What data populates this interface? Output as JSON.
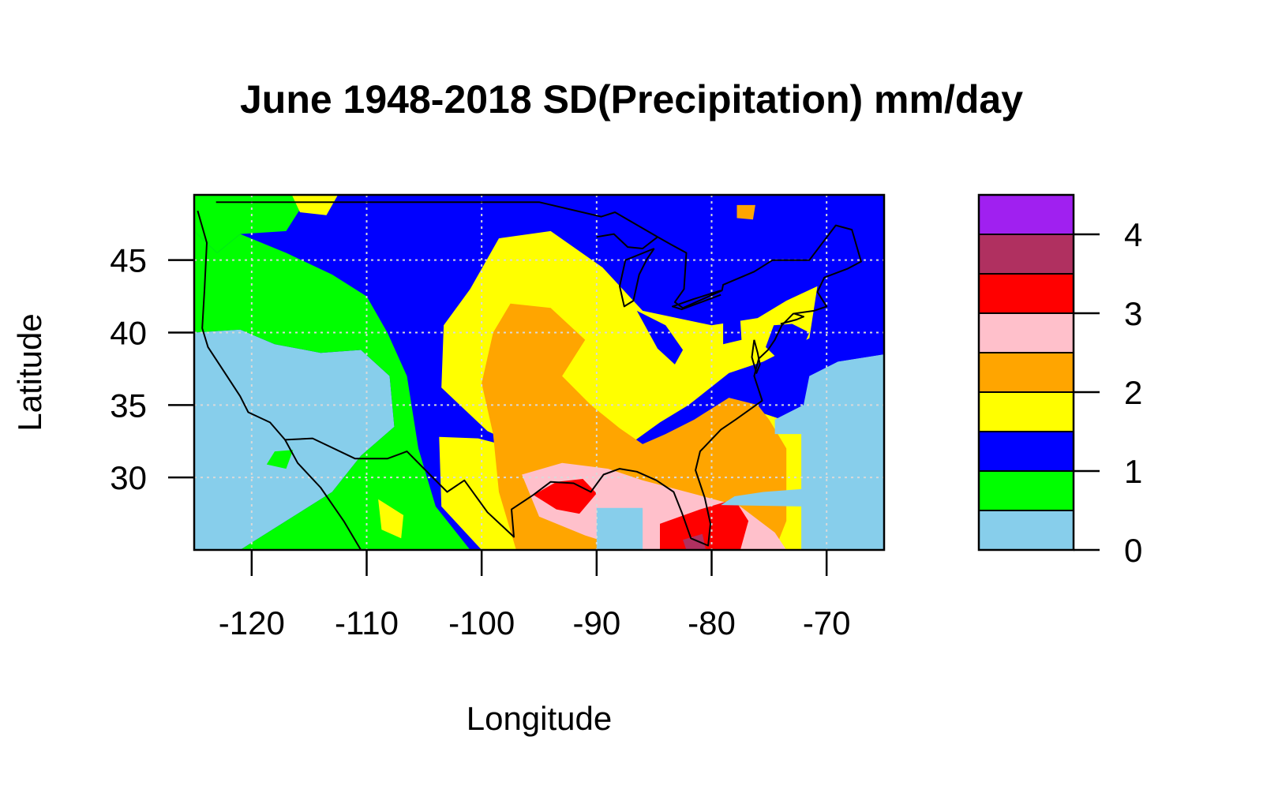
{
  "chart_data": {
    "type": "heatmap",
    "title": "June 1948-2018 SD(Precipitation)  mm/day",
    "xlabel": "Longitude",
    "ylabel": "Latitude",
    "xlim": [
      -125,
      -65
    ],
    "ylim": [
      25,
      49.5
    ],
    "xticks": [
      -120,
      -110,
      -100,
      -90,
      -80,
      -70
    ],
    "yticks": [
      30,
      35,
      40,
      45
    ],
    "grid": true,
    "colorbar": {
      "placement": "right",
      "breaks": [
        0,
        0.5,
        1,
        1.5,
        2,
        2.5,
        3,
        3.5,
        4,
        4.5
      ],
      "colors": [
        "#87CEEB",
        "#00FF00",
        "#0000FF",
        "#FFFF00",
        "#FFA500",
        "#FFC0CB",
        "#FF0000",
        "#B03060",
        "#A020F0",
        "#000000"
      ],
      "ticks": [
        0,
        1,
        2,
        3,
        4
      ]
    },
    "regions": [
      {
        "name": "ocean-west",
        "level": 0,
        "poly": [
          [
            -125,
            25
          ],
          [
            -125,
            40
          ],
          [
            -121,
            40.2
          ],
          [
            -118,
            39.2
          ],
          [
            -114,
            38.6
          ],
          [
            -110.5,
            38.8
          ],
          [
            -108,
            37
          ],
          [
            -107.6,
            33.5
          ],
          [
            -110.5,
            31.5
          ],
          [
            -113,
            29
          ],
          [
            -117,
            27
          ],
          [
            -120,
            25.5
          ],
          [
            -121,
            25
          ]
        ]
      },
      {
        "name": "interior-west",
        "level": 1,
        "poly": [
          [
            -125,
            40
          ],
          [
            -125,
            47
          ],
          [
            -123,
            45.5
          ],
          [
            -121,
            46.8
          ],
          [
            -117,
            45.5
          ],
          [
            -113,
            44
          ],
          [
            -110,
            42.5
          ],
          [
            -108.2,
            40
          ],
          [
            -106.5,
            37
          ],
          [
            -105.5,
            32
          ],
          [
            -104,
            28
          ],
          [
            -101,
            25
          ],
          [
            -121,
            25
          ],
          [
            -120,
            25.5
          ],
          [
            -117,
            27
          ],
          [
            -113,
            29
          ],
          [
            -110.5,
            31.5
          ],
          [
            -107.6,
            33.5
          ],
          [
            -108,
            37
          ],
          [
            -110.5,
            38.8
          ],
          [
            -114,
            38.6
          ],
          [
            -118,
            39.2
          ],
          [
            -121,
            40.2
          ]
        ]
      },
      {
        "name": "northwest-green",
        "level": 1,
        "poly": [
          [
            -125,
            47
          ],
          [
            -125,
            49.5
          ],
          [
            -115,
            49.5
          ],
          [
            -117,
            47
          ],
          [
            -121,
            46.8
          ],
          [
            -123,
            45.5
          ]
        ]
      },
      {
        "name": "yellow-north",
        "level": 3,
        "poly": [
          [
            -98.5,
            46.5
          ],
          [
            -94,
            47
          ],
          [
            -89.5,
            44.5
          ],
          [
            -86,
            41.5
          ],
          [
            -80,
            40.5
          ],
          [
            -76,
            41
          ],
          [
            -73.5,
            42.2
          ],
          [
            -70.8,
            43.2
          ],
          [
            -71.5,
            39.6
          ],
          [
            -75.5,
            38
          ],
          [
            -78.5,
            37.2
          ],
          [
            -82,
            35
          ],
          [
            -84.5,
            33.8
          ],
          [
            -88,
            31.8
          ],
          [
            -94,
            31.2
          ],
          [
            -99.5,
            33.2
          ],
          [
            -103.5,
            36.2
          ],
          [
            -103.3,
            40.5
          ],
          [
            -101,
            43
          ]
        ]
      },
      {
        "name": "yellow-south",
        "level": 3,
        "poly": [
          [
            -100,
            25
          ],
          [
            -103.5,
            28
          ],
          [
            -103.7,
            32.8
          ],
          [
            -100.3,
            32.7
          ],
          [
            -96,
            31.8
          ],
          [
            -90,
            31.8
          ],
          [
            -84.5,
            31.5
          ],
          [
            -80.5,
            32.5
          ],
          [
            -78.5,
            33.3
          ],
          [
            -75.8,
            34.5
          ],
          [
            -72,
            33.5
          ],
          [
            -71.5,
            26.5
          ],
          [
            -71,
            25
          ]
        ]
      },
      {
        "name": "orange-central",
        "level": 4,
        "poly": [
          [
            -97.5,
            42
          ],
          [
            -94,
            41.7
          ],
          [
            -91,
            39.5
          ],
          [
            -93,
            37
          ],
          [
            -90.5,
            35
          ],
          [
            -88,
            33.4
          ],
          [
            -86,
            32.3
          ],
          [
            -84,
            33
          ],
          [
            -81.5,
            34
          ],
          [
            -78.5,
            35.5
          ],
          [
            -76,
            35
          ],
          [
            -75,
            34
          ],
          [
            -73.5,
            32
          ],
          [
            -73.5,
            27
          ],
          [
            -74.5,
            25
          ],
          [
            -97,
            25
          ],
          [
            -98.5,
            29
          ],
          [
            -99,
            33
          ],
          [
            -100,
            36.5
          ],
          [
            -99,
            40
          ]
        ]
      },
      {
        "name": "pink-gulf",
        "level": 5,
        "poly": [
          [
            -96.5,
            30.2
          ],
          [
            -93,
            31
          ],
          [
            -89,
            30.6
          ],
          [
            -86,
            29.8
          ],
          [
            -81.2,
            28.8
          ],
          [
            -77.5,
            28
          ],
          [
            -74.5,
            26.2
          ],
          [
            -73.5,
            25
          ],
          [
            -87,
            25
          ],
          [
            -91,
            26
          ],
          [
            -95,
            27.3
          ]
        ]
      },
      {
        "name": "red-louisiana",
        "level": 6,
        "poly": [
          [
            -95.5,
            28.8
          ],
          [
            -93.5,
            29.7
          ],
          [
            -91.2,
            29.9
          ],
          [
            -90,
            28.9
          ],
          [
            -91.5,
            27.5
          ],
          [
            -93.5,
            27.8
          ]
        ]
      },
      {
        "name": "red-florida",
        "level": 6,
        "poly": [
          [
            -84.5,
            26.8
          ],
          [
            -81,
            27.8
          ],
          [
            -78,
            28.5
          ],
          [
            -76.8,
            27
          ],
          [
            -77.5,
            25
          ],
          [
            -84.5,
            25
          ]
        ]
      },
      {
        "name": "maroon-florida",
        "level": 7,
        "poly": [
          [
            -82.5,
            25.7
          ],
          [
            -80.8,
            26.1
          ],
          [
            -80.5,
            25
          ],
          [
            -82.2,
            25
          ]
        ]
      },
      {
        "name": "ocean-gulf",
        "level": 0,
        "poly": [
          [
            -90,
            25
          ],
          [
            -90,
            27.9
          ],
          [
            -86,
            27.9
          ],
          [
            -86,
            25
          ]
        ]
      },
      {
        "name": "ocean-atlantic",
        "level": 0,
        "poly": [
          [
            -65,
            25
          ],
          [
            -65,
            38.5
          ],
          [
            -69,
            38
          ],
          [
            -71.5,
            37
          ],
          [
            -72,
            35
          ],
          [
            -74.5,
            34
          ],
          [
            -74.5,
            33
          ],
          [
            -72.2,
            33
          ],
          [
            -72.2,
            29.2
          ],
          [
            -75.5,
            29
          ],
          [
            -78,
            28.7
          ],
          [
            -79.2,
            28.1
          ],
          [
            -72.2,
            28
          ],
          [
            -72.2,
            25
          ]
        ]
      },
      {
        "name": "blue-atlantic-edge",
        "level": 2,
        "poly": [
          [
            -65,
            38.5
          ],
          [
            -65,
            41
          ],
          [
            -67.5,
            39.5
          ],
          [
            -69,
            38
          ]
        ]
      },
      {
        "name": "blue-east-coast",
        "level": 2,
        "poly": [
          [
            -71.5,
            40
          ],
          [
            -73,
            40.6
          ],
          [
            -74.6,
            40.5
          ],
          [
            -75.3,
            39
          ],
          [
            -74,
            38
          ],
          [
            -72.2,
            38.7
          ]
        ]
      },
      {
        "name": "blue-lake-michigan",
        "level": 2,
        "poly": [
          [
            -86.5,
            41.5
          ],
          [
            -84,
            40.5
          ],
          [
            -82.5,
            38.8
          ],
          [
            -83.2,
            37.8
          ],
          [
            -84.7,
            38.9
          ]
        ]
      },
      {
        "name": "blue-mid-atlantic",
        "level": 2,
        "poly": [
          [
            -79,
            41.3
          ],
          [
            -77.5,
            40.8
          ],
          [
            -77.4,
            39.5
          ],
          [
            -79,
            39.2
          ]
        ]
      },
      {
        "name": "yellow-west-spot",
        "level": 3,
        "poly": [
          [
            -109,
            28.5
          ],
          [
            -106.8,
            27.4
          ],
          [
            -107,
            25.8
          ],
          [
            -108.7,
            26.4
          ]
        ]
      },
      {
        "name": "green-spot-mexico",
        "level": 1,
        "poly": [
          [
            -118,
            31.8
          ],
          [
            -116.4,
            31.9
          ],
          [
            -117,
            30.6
          ],
          [
            -118.7,
            30.9
          ]
        ]
      },
      {
        "name": "yellow-north-spot",
        "level": 3,
        "poly": [
          [
            -116.5,
            49.5
          ],
          [
            -112.5,
            49.5
          ],
          [
            -113.5,
            48.1
          ],
          [
            -115.8,
            48.3
          ]
        ]
      },
      {
        "name": "orange-canada-spot",
        "level": 4,
        "poly": [
          [
            -77.8,
            48.8
          ],
          [
            -76.2,
            48.8
          ],
          [
            -76.4,
            47.8
          ],
          [
            -77.8,
            47.9
          ]
        ]
      }
    ],
    "boundaries": [
      {
        "name": "us-border",
        "points": [
          [
            -124.7,
            48.4
          ],
          [
            -123.9,
            46.2
          ],
          [
            -124.1,
            43
          ],
          [
            -124.3,
            40.3
          ],
          [
            -123.8,
            39
          ],
          [
            -122.4,
            37.3
          ],
          [
            -121,
            35.6
          ],
          [
            -120.3,
            34.5
          ],
          [
            -118.4,
            33.8
          ],
          [
            -117.1,
            32.6
          ],
          [
            -114.7,
            32.7
          ],
          [
            -111,
            31.3
          ],
          [
            -108.2,
            31.3
          ],
          [
            -106.5,
            31.8
          ],
          [
            -104.5,
            30.2
          ],
          [
            -103,
            29
          ],
          [
            -101.5,
            29.8
          ],
          [
            -99.5,
            27.6
          ],
          [
            -97.2,
            25.9
          ],
          [
            -97.4,
            27.8
          ],
          [
            -95.5,
            28.8
          ],
          [
            -94,
            29.7
          ],
          [
            -92,
            29.6
          ],
          [
            -90.5,
            29
          ],
          [
            -89.4,
            30.2
          ],
          [
            -88,
            30.6
          ],
          [
            -86.5,
            30.4
          ],
          [
            -84.8,
            29.8
          ],
          [
            -83.3,
            29
          ],
          [
            -82.6,
            27.6
          ],
          [
            -81.8,
            25.8
          ],
          [
            -80.3,
            25.3
          ],
          [
            -80.1,
            26.8
          ],
          [
            -80.6,
            28.6
          ],
          [
            -81.4,
            30.5
          ],
          [
            -81,
            31.8
          ],
          [
            -79.2,
            33.3
          ],
          [
            -77.9,
            34
          ],
          [
            -75.6,
            35.3
          ],
          [
            -76.3,
            37
          ],
          [
            -75.9,
            38.2
          ],
          [
            -75.1,
            38.8
          ],
          [
            -74.5,
            39.5
          ],
          [
            -73.9,
            40.5
          ],
          [
            -72.9,
            41.3
          ],
          [
            -71.1,
            41.5
          ],
          [
            -70,
            41.8
          ],
          [
            -70.8,
            42.8
          ],
          [
            -70.2,
            43.8
          ],
          [
            -68.2,
            44.4
          ],
          [
            -67,
            44.9
          ],
          [
            -67.8,
            47.1
          ],
          [
            -69.2,
            47.4
          ],
          [
            -71.5,
            45
          ],
          [
            -74.7,
            45
          ],
          [
            -76.3,
            44.2
          ],
          [
            -79,
            43.3
          ],
          [
            -79.1,
            42.9
          ],
          [
            -82.5,
            41.7
          ],
          [
            -83.2,
            42.1
          ],
          [
            -82.4,
            43
          ],
          [
            -82.2,
            45.5
          ],
          [
            -83.6,
            46.1
          ],
          [
            -84.7,
            46.6
          ],
          [
            -88.4,
            48.3
          ],
          [
            -89.6,
            48
          ],
          [
            -95,
            49
          ],
          [
            -123.1,
            49
          ]
        ]
      },
      {
        "name": "mexico-coast",
        "points": [
          [
            -117.1,
            32.6
          ],
          [
            -116,
            31
          ],
          [
            -114,
            29.3
          ],
          [
            -112,
            27
          ],
          [
            -110.5,
            25
          ]
        ]
      },
      {
        "name": "lake-michigan",
        "points": [
          [
            -85,
            45.8
          ],
          [
            -87.5,
            45
          ],
          [
            -88,
            43.2
          ],
          [
            -87.6,
            41.8
          ],
          [
            -86.8,
            42.2
          ],
          [
            -86.3,
            44
          ],
          [
            -85.6,
            45.1
          ],
          [
            -85,
            45.8
          ]
        ]
      },
      {
        "name": "lake-superior-michigan",
        "points": [
          [
            -84.7,
            46.6
          ],
          [
            -86,
            45.8
          ],
          [
            -87.3,
            45.9
          ],
          [
            -88.5,
            46.8
          ],
          [
            -90,
            46.6
          ]
        ]
      },
      {
        "name": "lake-erie",
        "points": [
          [
            -79.2,
            42.6
          ],
          [
            -82.6,
            41.6
          ],
          [
            -83.4,
            41.8
          ],
          [
            -81.6,
            42.3
          ],
          [
            -79.2,
            42.9
          ]
        ]
      },
      {
        "name": "chesapeake",
        "points": [
          [
            -76.3,
            39.5
          ],
          [
            -76.5,
            38.3
          ],
          [
            -76.1,
            37.2
          ],
          [
            -75.8,
            37.8
          ],
          [
            -76,
            38.6
          ],
          [
            -76.3,
            39.5
          ]
        ]
      },
      {
        "name": "long-island",
        "points": [
          [
            -74,
            40.6
          ],
          [
            -72.6,
            40.9
          ],
          [
            -72,
            41.1
          ],
          [
            -72.8,
            41.3
          ]
        ]
      }
    ]
  }
}
